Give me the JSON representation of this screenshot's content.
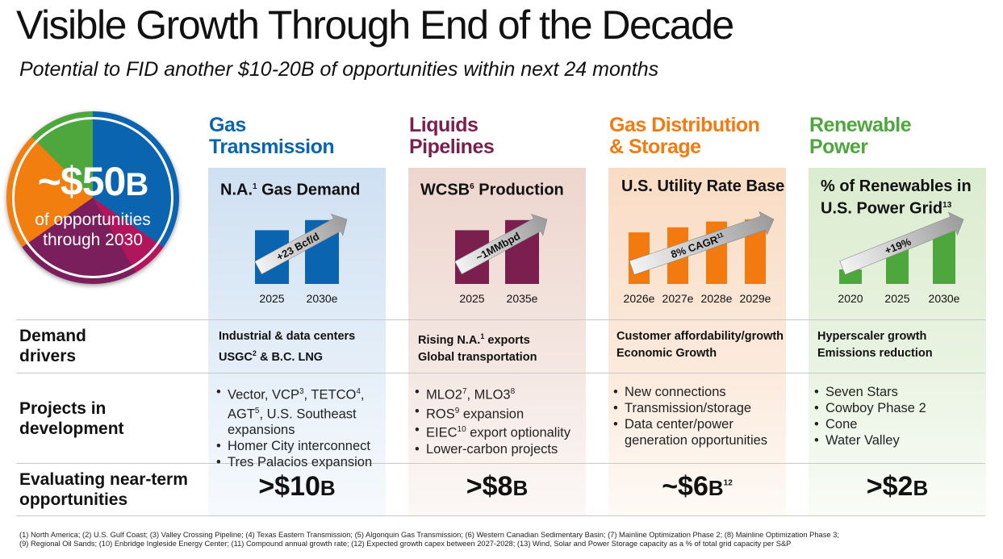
{
  "title": "Visible Growth Through End of the Decade",
  "subtitle": "Potential to FID another $10-20B of opportunities within next 24 months",
  "badge": {
    "big": "~$50",
    "big_unit": "B",
    "line1": "of opportunities",
    "line2": "through 2030"
  },
  "row_labels": {
    "drivers_1": "Demand",
    "drivers_2": "drivers",
    "projects_1": "Projects in",
    "projects_2": "development",
    "eval_1": "Evaluating near-term",
    "eval_2": "opportunities"
  },
  "columns": [
    {
      "title_1": "Gas",
      "title_2": "Transmission",
      "color": "#0a64b0",
      "box_title": "N.A.",
      "box_sup": "1",
      "box_title_rest": " Gas Demand",
      "box_title_2": "",
      "arrow_label": "+23 Bcf/d",
      "drivers": [
        "Industrial & data centers",
        "USGC",
        "2",
        " & B.C. LNG"
      ],
      "projects": [
        {
          "text": "Vector, VCP",
          "sup": "3",
          "text2": ", TETCO",
          "sup2": "4",
          "text3": ","
        },
        {
          "text": "AGT",
          "sup": "5",
          "text2": ", U.S. Southeast",
          "sup2": "",
          "text3": ""
        },
        {
          "text": "expansions",
          "indent": true
        },
        {
          "text": "Homer City interconnect"
        },
        {
          "text": "Tres Palacios expansion"
        }
      ],
      "value": ">$10",
      "value_unit": "B",
      "value_sup": ""
    },
    {
      "title_1": "Liquids",
      "title_2": "Pipelines",
      "color": "#7a1f4e",
      "box_title": "WCSB",
      "box_sup": "6",
      "box_title_rest": " Production",
      "box_title_2": "",
      "arrow_label": "~1MMbpd",
      "drivers": [
        "Rising N.A.",
        "1",
        " exports",
        "Global transportation"
      ],
      "projects": [
        {
          "text": "MLO2",
          "sup": "7",
          "text2": ", MLO3",
          "sup2": "8"
        },
        {
          "text": "ROS",
          "sup": "9",
          "text2": " expansion"
        },
        {
          "text": "EIEC",
          "sup": "10",
          "text2": " export optionality"
        },
        {
          "text": "Lower-carbon projects"
        }
      ],
      "value": ">$8",
      "value_unit": "B",
      "value_sup": ""
    },
    {
      "title_1": "Gas Distribution",
      "title_2": "& Storage",
      "color": "#f27a0f",
      "box_title": "U.S. Utility Rate Base",
      "box_sup": "",
      "box_title_rest": "",
      "box_title_2": "",
      "arrow_label": "8% CAGR",
      "arrow_sup": "11",
      "drivers": [
        "Customer affordability/growth",
        "Economic Growth"
      ],
      "projects": [
        {
          "text": "New connections"
        },
        {
          "text": "Transmission/storage"
        },
        {
          "text": "Data center/power"
        },
        {
          "text": "generation opportunities",
          "indent": true
        }
      ],
      "value": "~$6",
      "value_unit": "B",
      "value_sup": "12"
    },
    {
      "title_1": "Renewable",
      "title_2": "Power",
      "color": "#4ea73d",
      "box_title": "% of Renewables in",
      "box_sup": "",
      "box_title_rest": "",
      "box_title_2": "U.S. Power Grid",
      "box_title_2_sup": "13",
      "arrow_label": "+19%",
      "drivers": [
        "Hyperscaler growth",
        "Emissions reduction"
      ],
      "projects": [
        {
          "text": "Seven Stars"
        },
        {
          "text": "Cowboy Phase 2"
        },
        {
          "text": "Cone"
        },
        {
          "text": "Water Valley"
        }
      ],
      "value": ">$2",
      "value_unit": "B",
      "value_sup": ""
    }
  ],
  "chart_data": [
    {
      "type": "bar",
      "categories": [
        "2025",
        "2030e"
      ],
      "values": [
        74,
        88
      ],
      "color": "#0a64b0"
    },
    {
      "type": "bar",
      "categories": [
        "2025",
        "2035e"
      ],
      "values": [
        74,
        88
      ],
      "color": "#7a1f4e"
    },
    {
      "type": "bar",
      "categories": [
        "2026e",
        "2027e",
        "2028e",
        "2029e"
      ],
      "values": [
        71,
        78,
        86,
        89
      ],
      "color": "#f27a0f"
    },
    {
      "type": "bar",
      "categories": [
        "2020",
        "2025",
        "2030e"
      ],
      "values": [
        20,
        49,
        76
      ],
      "color": "#4ea73d"
    }
  ],
  "footnotes_1": "(1) North America; (2) U.S. Gulf Coast; (3) Valley Crossing Pipeline; (4) Texas Eastern Transmission; (5) Algonquin Gas Transmission; (6) Western Canadian Sedimentary Basin; (7) Mainline Optimization Phase 2; (8) Mainline Optimization Phase 3;",
  "footnotes_2": "(9) Regional Oil Sands; (10) Enbridge Ingleside Energy Center; (11) Compound annual growth rate; (12) Expected growth capex between 2027-2028; (13) Wind, Solar and Power Storage capacity as a % of total grid capacity per S&P"
}
